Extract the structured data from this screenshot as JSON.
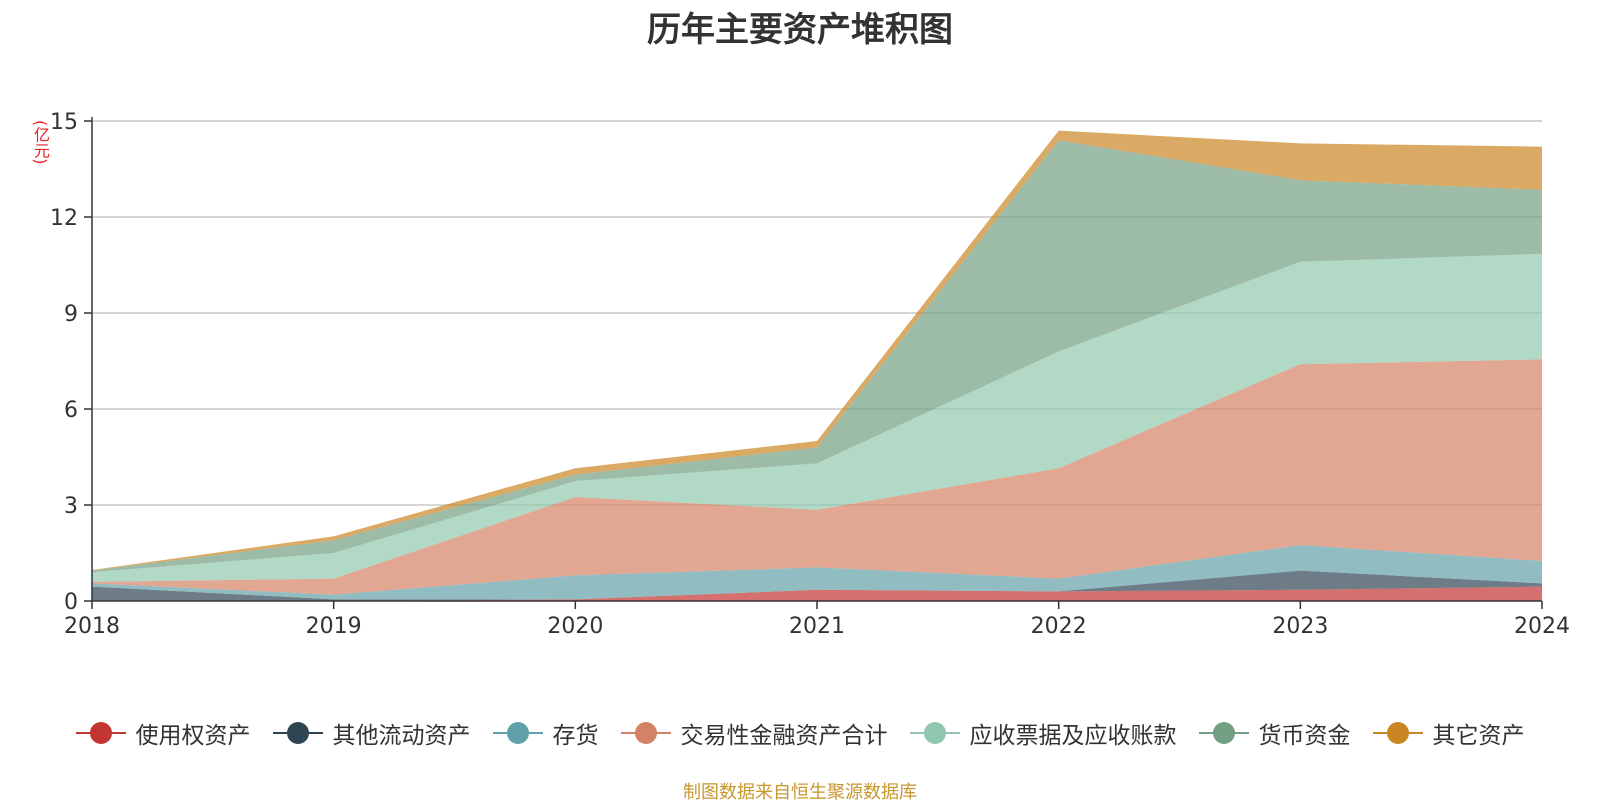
{
  "chart_data": {
    "type": "area",
    "stacked": true,
    "title": "历年主要资产堆积图",
    "ylabel": "(亿元)",
    "xlabel": "",
    "ylim": [
      0,
      15
    ],
    "yticks": [
      "0",
      "3",
      "6",
      "9",
      "12",
      "15"
    ],
    "categories": [
      "2018",
      "2019",
      "2020",
      "2021",
      "2022",
      "2023",
      "2024"
    ],
    "series": [
      {
        "name": "使用权资产",
        "color": "#c23531",
        "values": [
          0,
          0,
          0.05,
          0.35,
          0.3,
          0.35,
          0.45
        ]
      },
      {
        "name": "其他流动资产",
        "color": "#2f4554",
        "values": [
          0.45,
          0.05,
          0,
          0,
          0,
          0.6,
          0.1
        ]
      },
      {
        "name": "存货",
        "color": "#61a0a8",
        "values": [
          0.1,
          0.15,
          0.75,
          0.7,
          0.4,
          0.8,
          0.7
        ]
      },
      {
        "name": "交易性金融资产合计",
        "color": "#d48265",
        "values": [
          0.05,
          0.5,
          2.45,
          1.8,
          3.45,
          5.65,
          6.3
        ]
      },
      {
        "name": "应收票据及应收账款",
        "color": "#91c7ae",
        "values": [
          0.3,
          0.8,
          0.5,
          1.45,
          3.65,
          3.2,
          3.3
        ]
      },
      {
        "name": "货币资金",
        "color": "#749f83",
        "values": [
          0.05,
          0.4,
          0.2,
          0.5,
          6.6,
          2.55,
          2.0
        ]
      },
      {
        "name": "其它资产",
        "color": "#ca8622",
        "values": [
          0.02,
          0.12,
          0.2,
          0.2,
          0.3,
          1.15,
          1.35
        ]
      }
    ],
    "legend_position": "bottom",
    "grid": true
  },
  "source_note": "制图数据来自恒生聚源数据库"
}
